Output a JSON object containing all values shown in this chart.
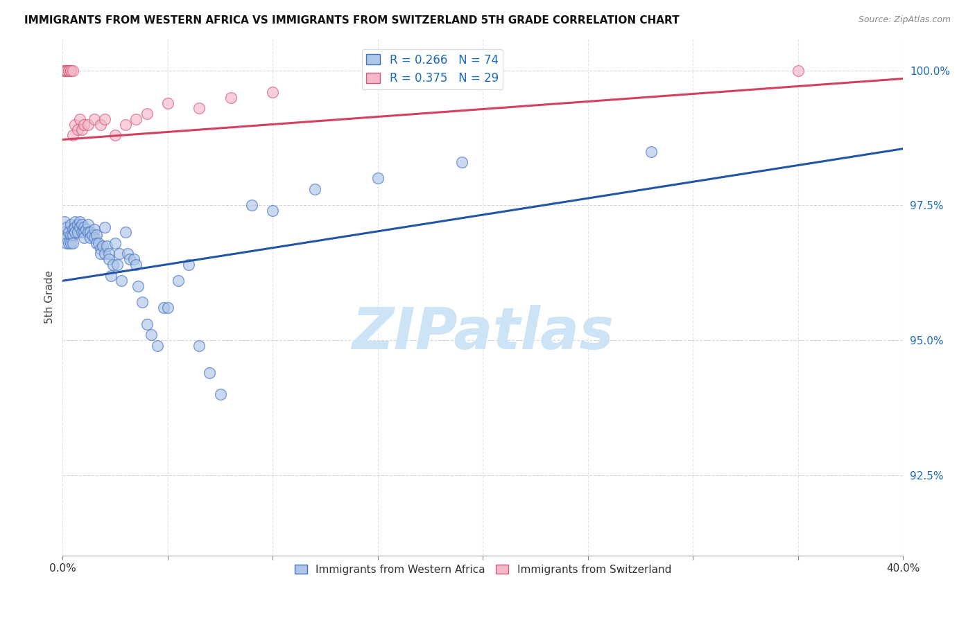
{
  "title": "IMMIGRANTS FROM WESTERN AFRICA VS IMMIGRANTS FROM SWITZERLAND 5TH GRADE CORRELATION CHART",
  "source": "Source: ZipAtlas.com",
  "xlabel_bottom": "Immigrants from Western Africa",
  "xlabel_bottom2": "Immigrants from Switzerland",
  "ylabel": "5th Grade",
  "xlim": [
    0.0,
    0.4
  ],
  "ylim": [
    0.91,
    1.006
  ],
  "yticks": [
    0.925,
    0.95,
    0.975,
    1.0
  ],
  "ytick_labels": [
    "92.5%",
    "95.0%",
    "97.5%",
    "100.0%"
  ],
  "xticks": [
    0.0,
    0.05,
    0.1,
    0.15,
    0.2,
    0.25,
    0.3,
    0.35,
    0.4
  ],
  "blue_R": 0.266,
  "blue_N": 74,
  "pink_R": 0.375,
  "pink_N": 29,
  "blue_color": "#aec6e8",
  "blue_edge_color": "#4472c4",
  "pink_color": "#f4b8c8",
  "pink_edge_color": "#d45a7a",
  "blue_line_color": "#2255a4",
  "pink_line_color": "#d44060",
  "blue_line_x0": 0.0,
  "blue_line_x1": 0.4,
  "blue_line_y0": 0.961,
  "blue_line_y1": 0.9855,
  "pink_line_x0": 0.0,
  "pink_line_x1": 0.4,
  "pink_line_y0": 0.9872,
  "pink_line_y1": 0.9985,
  "blue_x": [
    0.001,
    0.001,
    0.001,
    0.002,
    0.002,
    0.002,
    0.003,
    0.003,
    0.004,
    0.004,
    0.004,
    0.005,
    0.005,
    0.005,
    0.006,
    0.006,
    0.006,
    0.007,
    0.007,
    0.008,
    0.008,
    0.009,
    0.009,
    0.01,
    0.01,
    0.01,
    0.011,
    0.012,
    0.012,
    0.013,
    0.013,
    0.014,
    0.015,
    0.015,
    0.016,
    0.016,
    0.017,
    0.018,
    0.018,
    0.019,
    0.02,
    0.02,
    0.021,
    0.022,
    0.022,
    0.023,
    0.024,
    0.025,
    0.026,
    0.027,
    0.028,
    0.03,
    0.031,
    0.032,
    0.034,
    0.035,
    0.036,
    0.038,
    0.04,
    0.042,
    0.045,
    0.048,
    0.05,
    0.055,
    0.06,
    0.065,
    0.07,
    0.075,
    0.09,
    0.1,
    0.12,
    0.15,
    0.19,
    0.28
  ],
  "blue_y": [
    0.972,
    0.97,
    0.969,
    0.971,
    0.969,
    0.968,
    0.97,
    0.968,
    0.9715,
    0.9695,
    0.968,
    0.9705,
    0.9695,
    0.968,
    0.972,
    0.971,
    0.97,
    0.9715,
    0.97,
    0.972,
    0.971,
    0.9715,
    0.97,
    0.971,
    0.97,
    0.969,
    0.9705,
    0.9715,
    0.97,
    0.97,
    0.969,
    0.9695,
    0.9705,
    0.969,
    0.9695,
    0.968,
    0.968,
    0.967,
    0.966,
    0.9675,
    0.971,
    0.966,
    0.9675,
    0.966,
    0.965,
    0.962,
    0.964,
    0.968,
    0.964,
    0.966,
    0.961,
    0.97,
    0.966,
    0.965,
    0.965,
    0.964,
    0.96,
    0.957,
    0.953,
    0.951,
    0.949,
    0.956,
    0.956,
    0.961,
    0.964,
    0.949,
    0.944,
    0.94,
    0.975,
    0.974,
    0.978,
    0.98,
    0.983,
    0.985
  ],
  "pink_x": [
    0.001,
    0.001,
    0.001,
    0.002,
    0.002,
    0.003,
    0.003,
    0.004,
    0.004,
    0.005,
    0.005,
    0.006,
    0.007,
    0.008,
    0.009,
    0.01,
    0.012,
    0.015,
    0.018,
    0.02,
    0.025,
    0.03,
    0.035,
    0.04,
    0.05,
    0.065,
    0.08,
    0.1,
    0.35
  ],
  "pink_y": [
    1.0,
    1.0,
    1.0,
    1.0,
    1.0,
    1.0,
    1.0,
    1.0,
    1.0,
    1.0,
    0.988,
    0.99,
    0.989,
    0.991,
    0.989,
    0.99,
    0.99,
    0.991,
    0.99,
    0.991,
    0.988,
    0.99,
    0.991,
    0.992,
    0.994,
    0.993,
    0.995,
    0.996,
    1.0
  ],
  "watermark_text": "ZIPatlas",
  "watermark_color": "#cce4f5",
  "background_color": "#ffffff",
  "grid_color": "#cccccc"
}
